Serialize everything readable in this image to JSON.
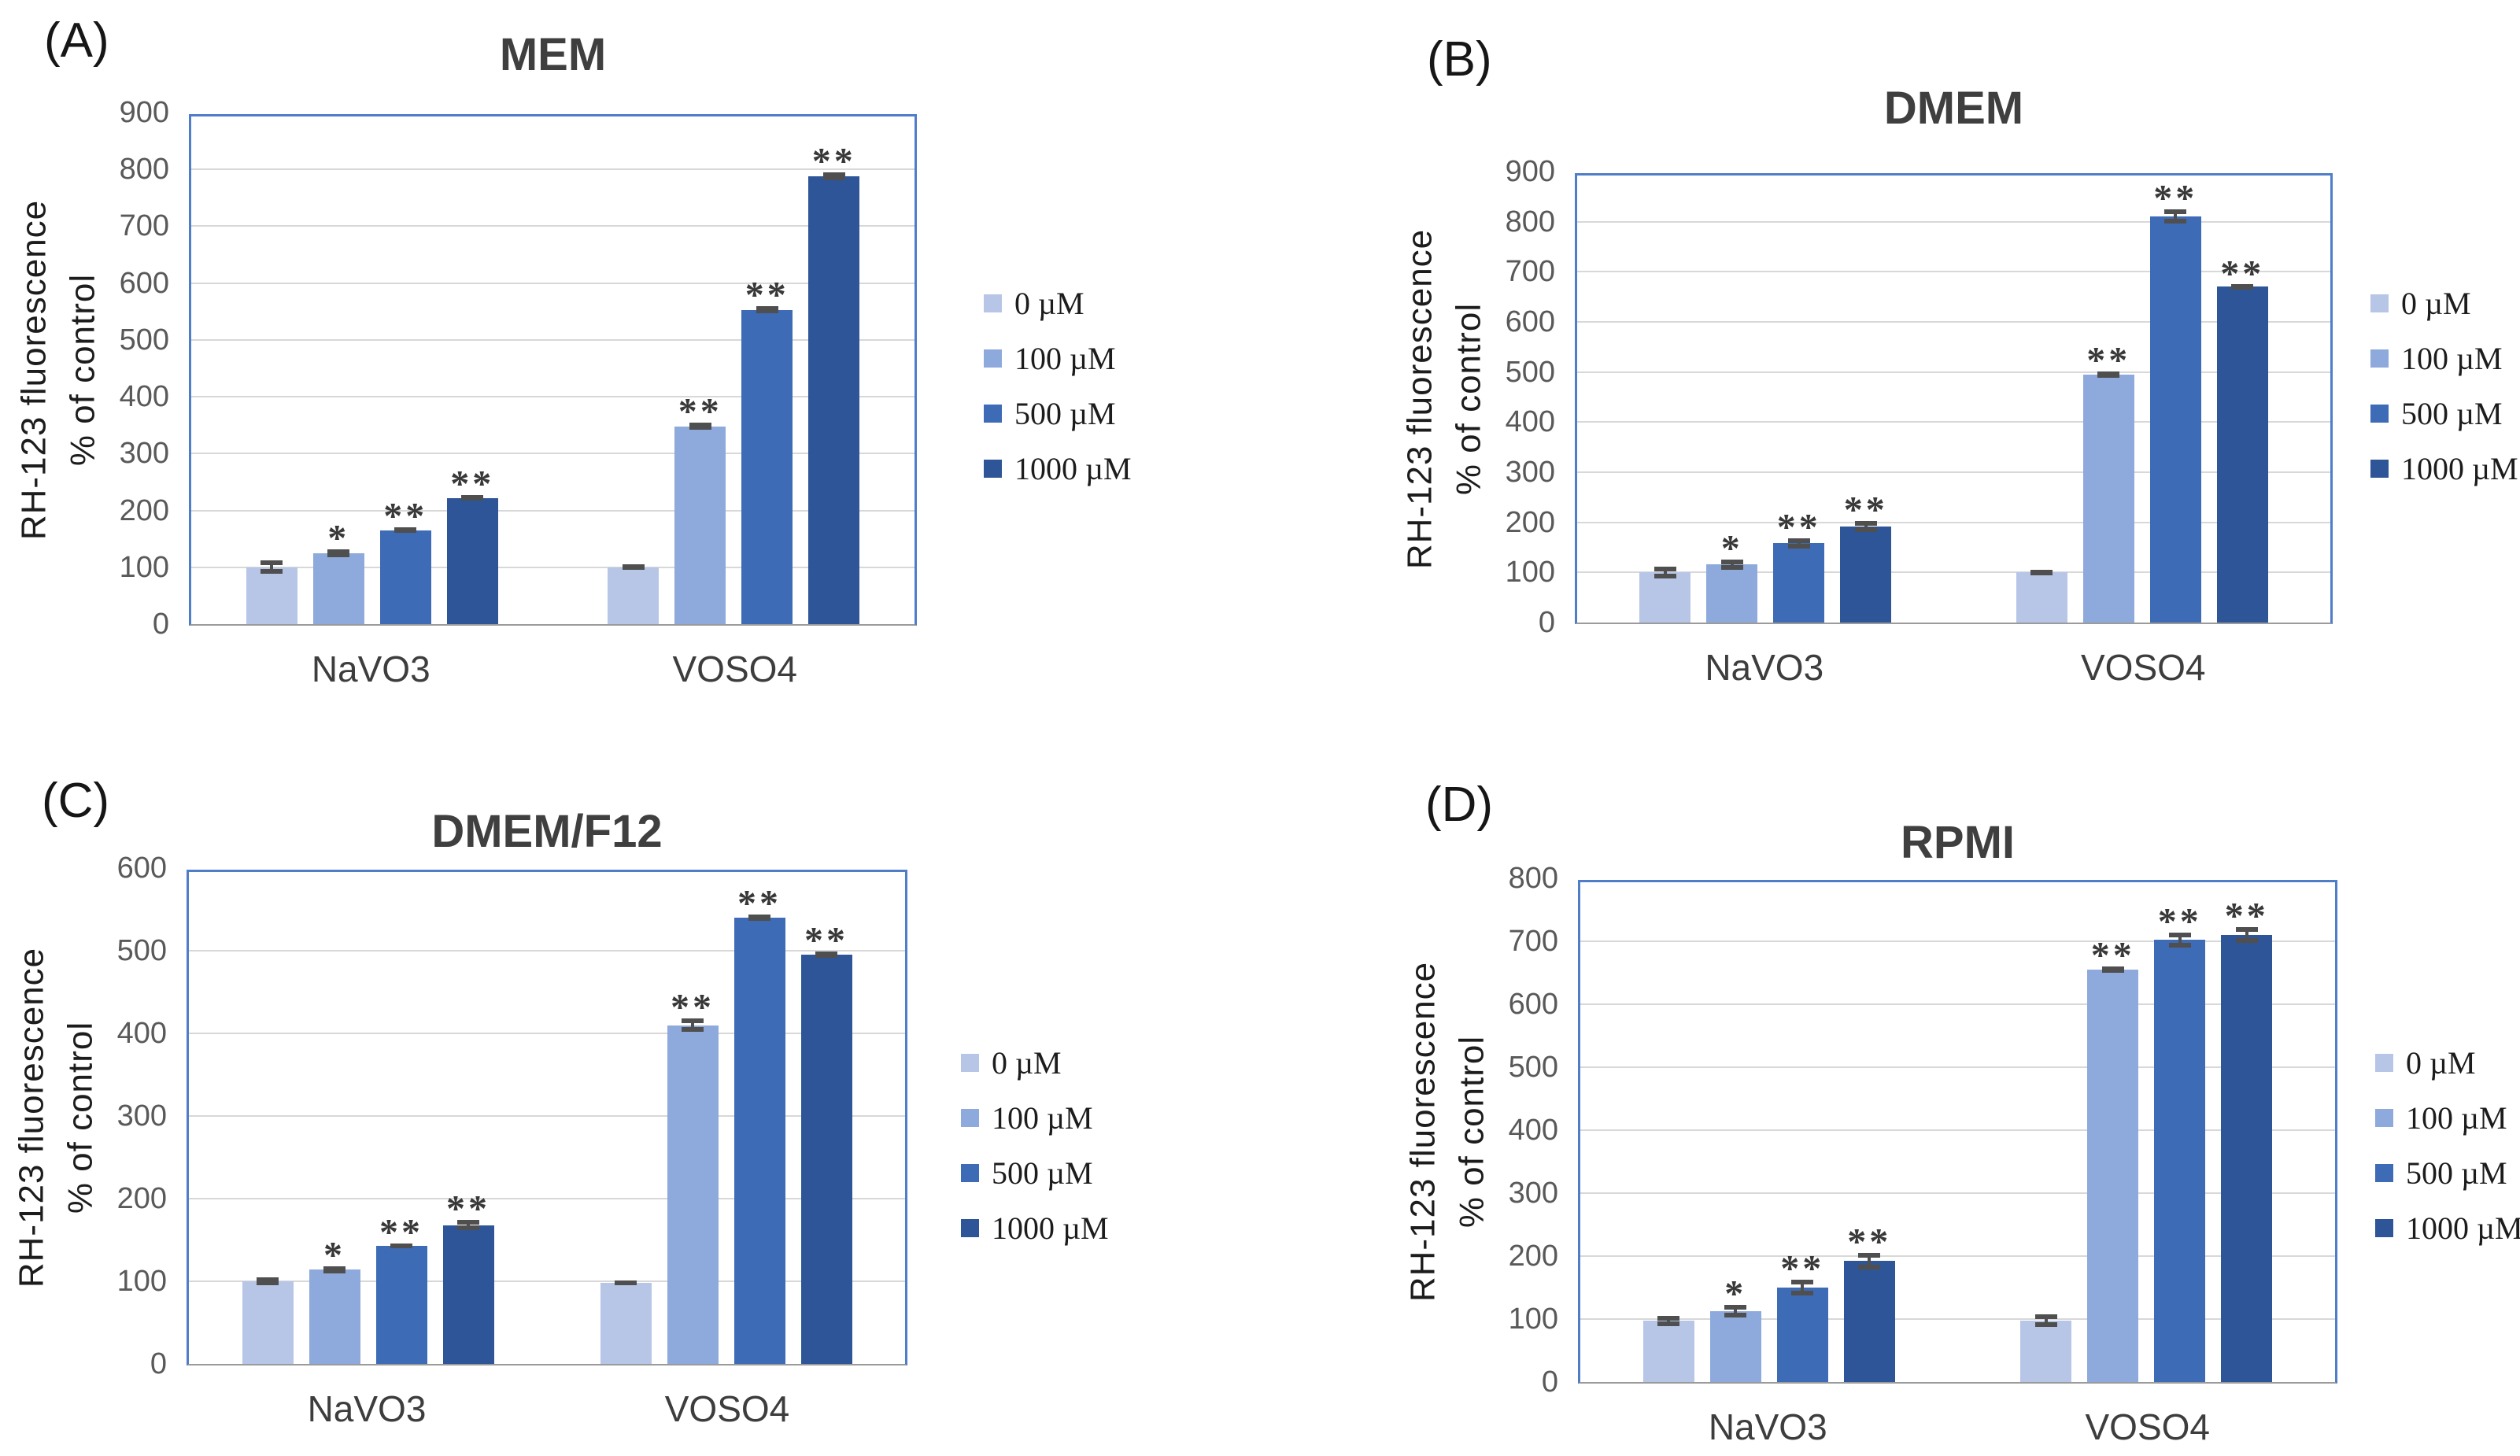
{
  "figure": {
    "y_axis_label": [
      "RH-123 fluorescence",
      "% of control"
    ],
    "categories": [
      "NaVO3",
      "VOSO4"
    ],
    "legend": [
      {
        "label": "0 µM",
        "color": "#b7c6e7"
      },
      {
        "label": "100 µM",
        "color": "#8ea9db"
      },
      {
        "label": "500 µM",
        "color": "#3e6bb5"
      },
      {
        "label": "1000 µM",
        "color": "#2e5597"
      }
    ],
    "colors": {
      "plot_border": "#4f7dc8",
      "gridline": "#d8d8d8",
      "axis_line": "#9b9b9b",
      "error_bar": "#4f4f4f",
      "tick_text": "#595959",
      "title_text": "#3f3f3f"
    }
  },
  "chart_data": [
    {
      "type": "bar",
      "panel_label": "(A)",
      "title": "MEM",
      "ylim": [
        0,
        900
      ],
      "yticks": [
        0,
        100,
        200,
        300,
        400,
        500,
        600,
        700,
        800,
        900
      ],
      "categories": [
        "NaVO3",
        "VOSO4"
      ],
      "series": [
        {
          "name": "0 µM",
          "color": "#b7c6e7",
          "values": [
            100,
            100
          ],
          "errors": [
            12,
            5
          ],
          "sig": [
            "",
            ""
          ]
        },
        {
          "name": "100 µM",
          "color": "#8ea9db",
          "values": [
            125,
            348
          ],
          "errors": [
            7,
            6
          ],
          "sig": [
            "*",
            "**"
          ]
        },
        {
          "name": "500 µM",
          "color": "#3e6bb5",
          "values": [
            165,
            553
          ],
          "errors": [
            5,
            6
          ],
          "sig": [
            "**",
            "**"
          ]
        },
        {
          "name": "1000 µM",
          "color": "#2e5597",
          "values": [
            222,
            788
          ],
          "errors": [
            5,
            7
          ],
          "sig": [
            "**",
            "**"
          ]
        }
      ]
    },
    {
      "type": "bar",
      "panel_label": "(B)",
      "title": "DMEM",
      "ylim": [
        0,
        900
      ],
      "yticks": [
        0,
        100,
        200,
        300,
        400,
        500,
        600,
        700,
        800,
        900
      ],
      "categories": [
        "NaVO3",
        "VOSO4"
      ],
      "series": [
        {
          "name": "0 µM",
          "color": "#b7c6e7",
          "values": [
            100,
            100
          ],
          "errors": [
            12,
            5
          ],
          "sig": [
            "",
            ""
          ]
        },
        {
          "name": "100 µM",
          "color": "#8ea9db",
          "values": [
            116,
            495
          ],
          "errors": [
            10,
            6
          ],
          "sig": [
            "*",
            "**"
          ]
        },
        {
          "name": "500 µM",
          "color": "#3e6bb5",
          "values": [
            158,
            810
          ],
          "errors": [
            10,
            14
          ],
          "sig": [
            "**",
            "**"
          ]
        },
        {
          "name": "1000 µM",
          "color": "#2e5597",
          "values": [
            192,
            670
          ],
          "errors": [
            11,
            4
          ],
          "sig": [
            "**",
            "**"
          ]
        }
      ]
    },
    {
      "type": "bar",
      "panel_label": "(C)",
      "title": "DMEM/F12",
      "ylim": [
        0,
        600
      ],
      "yticks": [
        0,
        100,
        200,
        300,
        400,
        500,
        600
      ],
      "categories": [
        "NaVO3",
        "VOSO4"
      ],
      "series": [
        {
          "name": "0 µM",
          "color": "#b7c6e7",
          "values": [
            100,
            98
          ],
          "errors": [
            5,
            3
          ],
          "sig": [
            "",
            ""
          ]
        },
        {
          "name": "100 µM",
          "color": "#8ea9db",
          "values": [
            114,
            410
          ],
          "errors": [
            4,
            8
          ],
          "sig": [
            "*",
            "**"
          ]
        },
        {
          "name": "500 µM",
          "color": "#3e6bb5",
          "values": [
            143,
            540
          ],
          "errors": [
            3,
            4
          ],
          "sig": [
            "**",
            "**"
          ]
        },
        {
          "name": "1000 µM",
          "color": "#2e5597",
          "values": [
            168,
            495
          ],
          "errors": [
            6,
            4
          ],
          "sig": [
            "**",
            "**"
          ]
        }
      ]
    },
    {
      "type": "bar",
      "panel_label": "(D)",
      "title": "RPMI",
      "ylim": [
        0,
        800
      ],
      "yticks": [
        0,
        100,
        200,
        300,
        400,
        500,
        600,
        700,
        800
      ],
      "categories": [
        "NaVO3",
        "VOSO4"
      ],
      "series": [
        {
          "name": "0 µM",
          "color": "#b7c6e7",
          "values": [
            97,
            97
          ],
          "errors": [
            8,
            10
          ],
          "sig": [
            "",
            ""
          ]
        },
        {
          "name": "100 µM",
          "color": "#8ea9db",
          "values": [
            112,
            655
          ],
          "errors": [
            10,
            5
          ],
          "sig": [
            "*",
            "**"
          ]
        },
        {
          "name": "500 µM",
          "color": "#3e6bb5",
          "values": [
            150,
            702
          ],
          "errors": [
            13,
            12
          ],
          "sig": [
            "**",
            "**"
          ]
        },
        {
          "name": "1000 µM",
          "color": "#2e5597",
          "values": [
            192,
            710
          ],
          "errors": [
            13,
            12
          ],
          "sig": [
            "**",
            "**"
          ]
        }
      ]
    }
  ]
}
